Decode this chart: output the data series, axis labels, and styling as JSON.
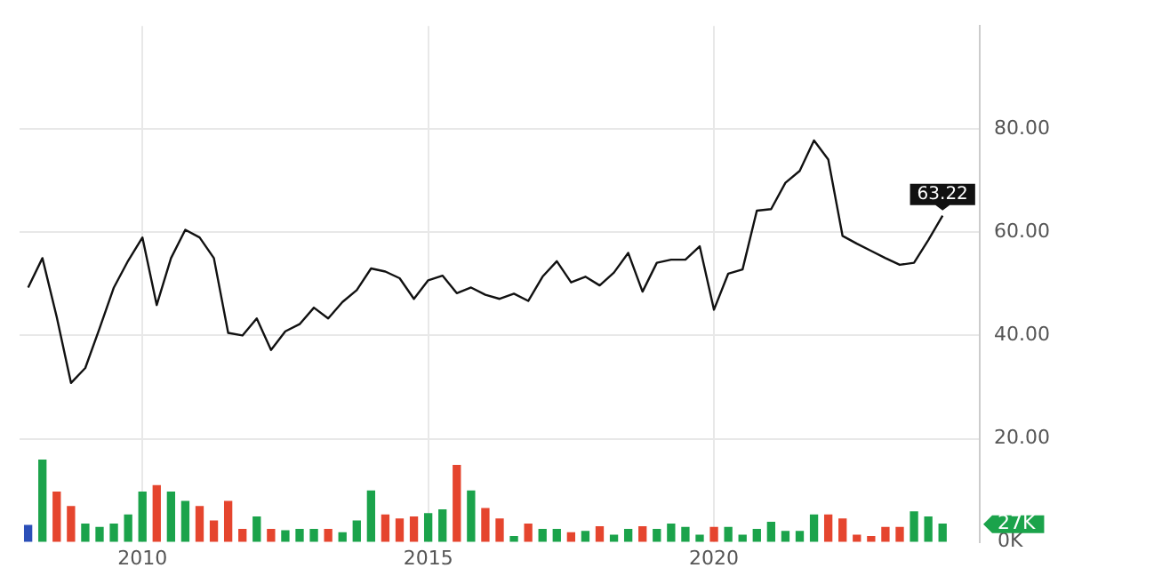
{
  "chart_data": {
    "type": "line",
    "x": [
      2008,
      2008.25,
      2008.5,
      2008.75,
      2009,
      2009.25,
      2009.5,
      2009.75,
      2010,
      2010.25,
      2010.5,
      2010.75,
      2011,
      2011.25,
      2011.5,
      2011.75,
      2012,
      2012.25,
      2012.5,
      2012.75,
      2013,
      2013.25,
      2013.5,
      2013.75,
      2014,
      2014.25,
      2014.5,
      2014.75,
      2015,
      2015.25,
      2015.5,
      2015.75,
      2016,
      2016.25,
      2016.5,
      2016.75,
      2017,
      2017.25,
      2017.5,
      2017.75,
      2018,
      2018.25,
      2018.5,
      2018.75,
      2019,
      2019.25,
      2019.5,
      2019.75,
      2020,
      2020.25,
      2020.5,
      2020.75,
      2021,
      2021.25,
      2021.5,
      2021.75,
      2022,
      2022.25,
      2022.5,
      2022.75,
      2023,
      2023.25,
      2023.5,
      2023.75,
      2024
    ],
    "series": [
      {
        "color": "#111111",
        "values": [
          49.3,
          55.0,
          43.6,
          30.8,
          33.7,
          41.4,
          49.3,
          54.5,
          59.0,
          45.9,
          55.0,
          60.5,
          59.0,
          55.0,
          40.5,
          40.0,
          43.3,
          37.2,
          40.8,
          42.2,
          45.4,
          43.3,
          46.5,
          48.8,
          53.0,
          52.4,
          51.1,
          47.1,
          50.7,
          51.6,
          48.2,
          49.3,
          47.9,
          47.1,
          48.1,
          46.7,
          51.4,
          54.4,
          50.3,
          51.4,
          49.7,
          52.2,
          56.0,
          48.5,
          54.1,
          54.7,
          54.7,
          57.3,
          45.0,
          52.0,
          52.8,
          64.2,
          64.5,
          69.6,
          71.9,
          77.8,
          74.1,
          59.3,
          57.8,
          56.4,
          55.0,
          53.7,
          54.1,
          58.5,
          63.22
        ],
        "value_labels": [
          null,
          null,
          null,
          null,
          null,
          null,
          null,
          null,
          null,
          null,
          null,
          null,
          null,
          null,
          null,
          null,
          null,
          null,
          null,
          null,
          null,
          null,
          null,
          null,
          null,
          null,
          null,
          null,
          null,
          null,
          null,
          null,
          null,
          null,
          null,
          null,
          null,
          null,
          null,
          null,
          null,
          null,
          null,
          null,
          null,
          null,
          null,
          null,
          null,
          null,
          null,
          null,
          null,
          null,
          null,
          null,
          null,
          null,
          null,
          null,
          null,
          null,
          null,
          null,
          "63.22"
        ]
      },
      {
        "type": "bar",
        "axis": "y2",
        "values": [
          25,
          125,
          76,
          54,
          27,
          22,
          27,
          41,
          76,
          86,
          76,
          62,
          54,
          32,
          62,
          19,
          38,
          19,
          17,
          19,
          19,
          19,
          14,
          32,
          78,
          41,
          35,
          38,
          43,
          49,
          117,
          78,
          51,
          35,
          8,
          27,
          19,
          19,
          14,
          16,
          23,
          10,
          19,
          23,
          19,
          27,
          22,
          10,
          22,
          22,
          10,
          19,
          30,
          16,
          16,
          41,
          41,
          35,
          10,
          8,
          22,
          22,
          46,
          38,
          27
        ],
        "colors": [
          "#2b4fb8",
          "#1ba34b",
          "#e5452e",
          "#e5452e",
          "#1ba34b",
          "#1ba34b",
          "#1ba34b",
          "#1ba34b",
          "#1ba34b",
          "#e5452e",
          "#1ba34b",
          "#1ba34b",
          "#e5452e",
          "#e5452e",
          "#e5452e",
          "#e5452e",
          "#1ba34b",
          "#e5452e",
          "#1ba34b",
          "#1ba34b",
          "#1ba34b",
          "#e5452e",
          "#1ba34b",
          "#1ba34b",
          "#1ba34b",
          "#e5452e",
          "#e5452e",
          "#e5452e",
          "#1ba34b",
          "#1ba34b",
          "#e5452e",
          "#1ba34b",
          "#e5452e",
          "#e5452e",
          "#1ba34b",
          "#e5452e",
          "#1ba34b",
          "#1ba34b",
          "#e5452e",
          "#1ba34b",
          "#e5452e",
          "#1ba34b",
          "#1ba34b",
          "#e5452e",
          "#1ba34b",
          "#1ba34b",
          "#1ba34b",
          "#1ba34b",
          "#e5452e",
          "#1ba34b",
          "#1ba34b",
          "#1ba34b",
          "#1ba34b",
          "#1ba34b",
          "#1ba34b",
          "#1ba34b",
          "#e5452e",
          "#e5452e",
          "#e5452e",
          "#e5452e",
          "#e5452e",
          "#e5452e",
          "#1ba34b",
          "#1ba34b",
          "#1ba34b"
        ]
      }
    ],
    "xlim": [
      2007.85,
      2024.65
    ],
    "xticks": [
      2010,
      2015,
      2020
    ],
    "ylim": [
      0,
      100
    ],
    "yticks": [
      {
        "value": 20,
        "label": "20.00"
      },
      {
        "value": 40,
        "label": "40.00"
      },
      {
        "value": 60,
        "label": "60.00"
      },
      {
        "value": 80,
        "label": "80.00"
      }
    ],
    "y2lim": [
      0,
      790
    ],
    "y2ticks": [
      {
        "value": 0,
        "label": "0K"
      },
      {
        "value": 27,
        "label": "27K"
      }
    ],
    "grid": true,
    "legend": false,
    "marker": "none",
    "line_style": "solid"
  }
}
